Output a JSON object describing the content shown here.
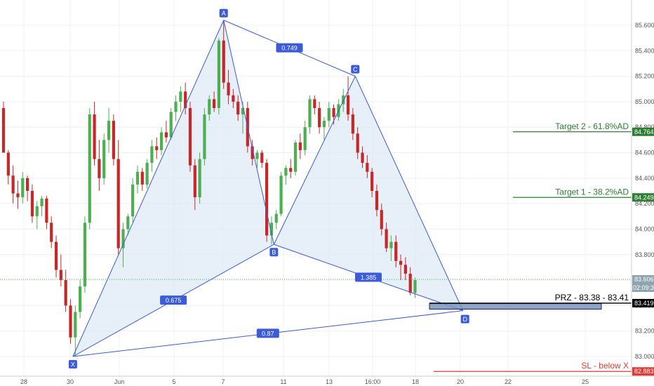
{
  "chart_data": {
    "type": "candlestick",
    "symbol_context": "XABCD harmonic pattern",
    "y_axis": {
      "position": "right",
      "range": [
        82.8,
        85.8
      ],
      "ticks": [
        "83.000",
        "83.200",
        "83.400",
        "83.600",
        "83.800",
        "84.000",
        "84.200",
        "84.400",
        "84.600",
        "84.800",
        "85.000",
        "85.200",
        "85.400",
        "85.600"
      ]
    },
    "x_axis": {
      "tick_labels": [
        "28",
        "30",
        "Jun",
        "5",
        "7",
        "11",
        "13",
        "16:00",
        "18",
        "20",
        "22",
        "25"
      ]
    },
    "grid": true,
    "candle_colors": {
      "up": "#4caf50",
      "down": "#c62828"
    },
    "candles": [
      [
        84.95,
        85.0,
        84.6,
        84.6
      ],
      [
        84.6,
        84.62,
        84.35,
        84.42
      ],
      [
        84.42,
        84.5,
        84.2,
        84.28
      ],
      [
        84.28,
        84.38,
        84.16,
        84.25
      ],
      [
        84.25,
        84.45,
        84.2,
        84.4
      ],
      [
        84.4,
        84.42,
        84.22,
        84.3
      ],
      [
        84.3,
        84.35,
        84.05,
        84.1
      ],
      [
        84.1,
        84.22,
        84.0,
        84.18
      ],
      [
        84.18,
        84.26,
        84.1,
        84.24
      ],
      [
        84.24,
        84.26,
        84.0,
        84.05
      ],
      [
        84.05,
        84.1,
        83.85,
        83.9
      ],
      [
        83.9,
        83.95,
        83.62,
        83.68
      ],
      [
        83.68,
        83.8,
        83.55,
        83.6
      ],
      [
        83.6,
        83.68,
        83.35,
        83.4
      ],
      [
        83.4,
        83.45,
        83.1,
        83.15
      ],
      [
        83.15,
        83.4,
        83.0,
        83.35
      ],
      [
        83.35,
        83.6,
        83.3,
        83.55
      ],
      [
        83.55,
        84.1,
        83.5,
        84.05
      ],
      [
        84.05,
        84.95,
        84.0,
        84.9
      ],
      [
        84.9,
        85.0,
        84.5,
        84.55
      ],
      [
        84.55,
        84.7,
        84.3,
        84.4
      ],
      [
        84.4,
        84.75,
        84.35,
        84.7
      ],
      [
        84.7,
        84.95,
        84.6,
        84.85
      ],
      [
        84.85,
        84.9,
        84.5,
        84.55
      ],
      [
        84.55,
        84.7,
        83.8,
        83.85
      ],
      [
        83.85,
        84.05,
        83.7,
        84.0
      ],
      [
        84.0,
        84.12,
        83.95,
        84.1
      ],
      [
        84.1,
        84.4,
        84.05,
        84.35
      ],
      [
        84.35,
        84.5,
        84.28,
        84.45
      ],
      [
        84.45,
        84.48,
        84.3,
        84.35
      ],
      [
        84.35,
        84.55,
        84.32,
        84.52
      ],
      [
        84.52,
        84.7,
        84.45,
        84.65
      ],
      [
        84.65,
        84.72,
        84.55,
        84.62
      ],
      [
        84.62,
        84.8,
        84.58,
        84.76
      ],
      [
        84.76,
        84.85,
        84.68,
        84.72
      ],
      [
        84.72,
        84.95,
        84.7,
        84.92
      ],
      [
        84.92,
        85.05,
        84.85,
        85.0
      ],
      [
        85.0,
        85.12,
        84.92,
        85.08
      ],
      [
        85.08,
        85.15,
        84.9,
        84.95
      ],
      [
        84.95,
        85.0,
        84.45,
        84.5
      ],
      [
        84.5,
        84.55,
        84.15,
        84.25
      ],
      [
        84.25,
        84.6,
        84.2,
        84.55
      ],
      [
        84.55,
        84.95,
        84.5,
        84.9
      ],
      [
        84.9,
        85.05,
        84.85,
        85.02
      ],
      [
        85.02,
        85.08,
        84.92,
        84.95
      ],
      [
        84.95,
        85.5,
        84.9,
        85.48
      ],
      [
        85.48,
        85.64,
        85.1,
        85.15
      ],
      [
        85.15,
        85.25,
        84.98,
        85.05
      ],
      [
        85.05,
        85.1,
        84.95,
        85.0
      ],
      [
        85.0,
        85.05,
        84.85,
        84.9
      ],
      [
        84.9,
        85.0,
        84.75,
        84.95
      ],
      [
        84.95,
        85.0,
        84.6,
        84.65
      ],
      [
        84.65,
        84.7,
        84.5,
        84.55
      ],
      [
        84.55,
        84.62,
        84.48,
        84.6
      ],
      [
        84.6,
        84.62,
        84.48,
        84.52
      ],
      [
        84.52,
        84.55,
        83.9,
        83.95
      ],
      [
        83.95,
        84.1,
        83.88,
        84.05
      ],
      [
        84.05,
        84.15,
        84.0,
        84.12
      ],
      [
        84.12,
        84.45,
        84.1,
        84.42
      ],
      [
        84.42,
        84.5,
        84.35,
        84.48
      ],
      [
        84.48,
        84.55,
        84.4,
        84.45
      ],
      [
        84.45,
        84.7,
        84.42,
        84.68
      ],
      [
        84.68,
        84.75,
        84.55,
        84.62
      ],
      [
        84.62,
        84.85,
        84.58,
        84.8
      ],
      [
        84.8,
        85.05,
        84.75,
        85.02
      ],
      [
        85.02,
        85.05,
        84.9,
        84.95
      ],
      [
        84.95,
        85.0,
        84.75,
        84.8
      ],
      [
        84.8,
        84.88,
        84.7,
        84.85
      ],
      [
        84.85,
        85.0,
        84.8,
        84.95
      ],
      [
        84.95,
        84.98,
        84.82,
        84.88
      ],
      [
        84.88,
        85.02,
        84.85,
        84.98
      ],
      [
        84.98,
        85.1,
        84.92,
        85.05
      ],
      [
        85.05,
        85.2,
        84.85,
        84.9
      ],
      [
        84.9,
        84.95,
        84.7,
        84.75
      ],
      [
        84.75,
        84.8,
        84.55,
        84.6
      ],
      [
        84.6,
        84.65,
        84.48,
        84.52
      ],
      [
        84.52,
        84.58,
        84.4,
        84.45
      ],
      [
        84.45,
        84.48,
        84.25,
        84.3
      ],
      [
        84.3,
        84.35,
        84.1,
        84.15
      ],
      [
        84.15,
        84.2,
        83.95,
        84.0
      ],
      [
        84.0,
        84.05,
        83.82,
        83.85
      ],
      [
        83.85,
        83.95,
        83.75,
        83.9
      ],
      [
        83.9,
        83.95,
        83.7,
        83.75
      ],
      [
        83.75,
        83.8,
        83.6,
        83.72
      ],
      [
        83.72,
        83.78,
        83.6,
        83.65
      ],
      [
        83.65,
        83.7,
        83.48,
        83.5
      ],
      [
        83.5,
        83.62,
        83.46,
        83.6
      ]
    ],
    "pattern": {
      "points": [
        {
          "label": "X",
          "bar": 14.5,
          "price": 83.0
        },
        {
          "label": "A",
          "bar": 46,
          "price": 85.64
        },
        {
          "label": "B",
          "bar": 56.5,
          "price": 83.88
        },
        {
          "label": "C",
          "bar": 73.5,
          "price": 85.2
        },
        {
          "label": "D",
          "bar": 96,
          "price": 83.36
        }
      ],
      "ratios": [
        {
          "from": "A",
          "to": "C",
          "value": "0.749"
        },
        {
          "from": "X",
          "to": "B",
          "value": "0.675"
        },
        {
          "from": "B",
          "to": "D",
          "value": "1.385"
        },
        {
          "from": "X",
          "to": "D",
          "value": "0.87"
        }
      ],
      "line_color": "#3b5bdb",
      "fill_color": "#dfe9f7"
    },
    "levels": [
      {
        "label": "Target 2 - 61.8%AD",
        "price": 84.764,
        "tag": "84.764",
        "color": "#2e7d32"
      },
      {
        "label": "Target 1 - 38.2%AD",
        "price": 84.249,
        "tag": "84.249",
        "color": "#2e7d32"
      },
      {
        "label": "PRZ - 83.38 - 83.41",
        "price": 83.419,
        "tag": "83.419",
        "color": "#000000"
      },
      {
        "label": "SL - below X",
        "price": 82.883,
        "tag": "82.883",
        "color": "#e53935"
      }
    ],
    "prz_zone": {
      "low": 83.38,
      "high": 83.41,
      "color": "#7b93bf"
    },
    "current_price": {
      "value": "83.606",
      "countdown": "02:09:31",
      "color": "#90a4ae"
    }
  }
}
